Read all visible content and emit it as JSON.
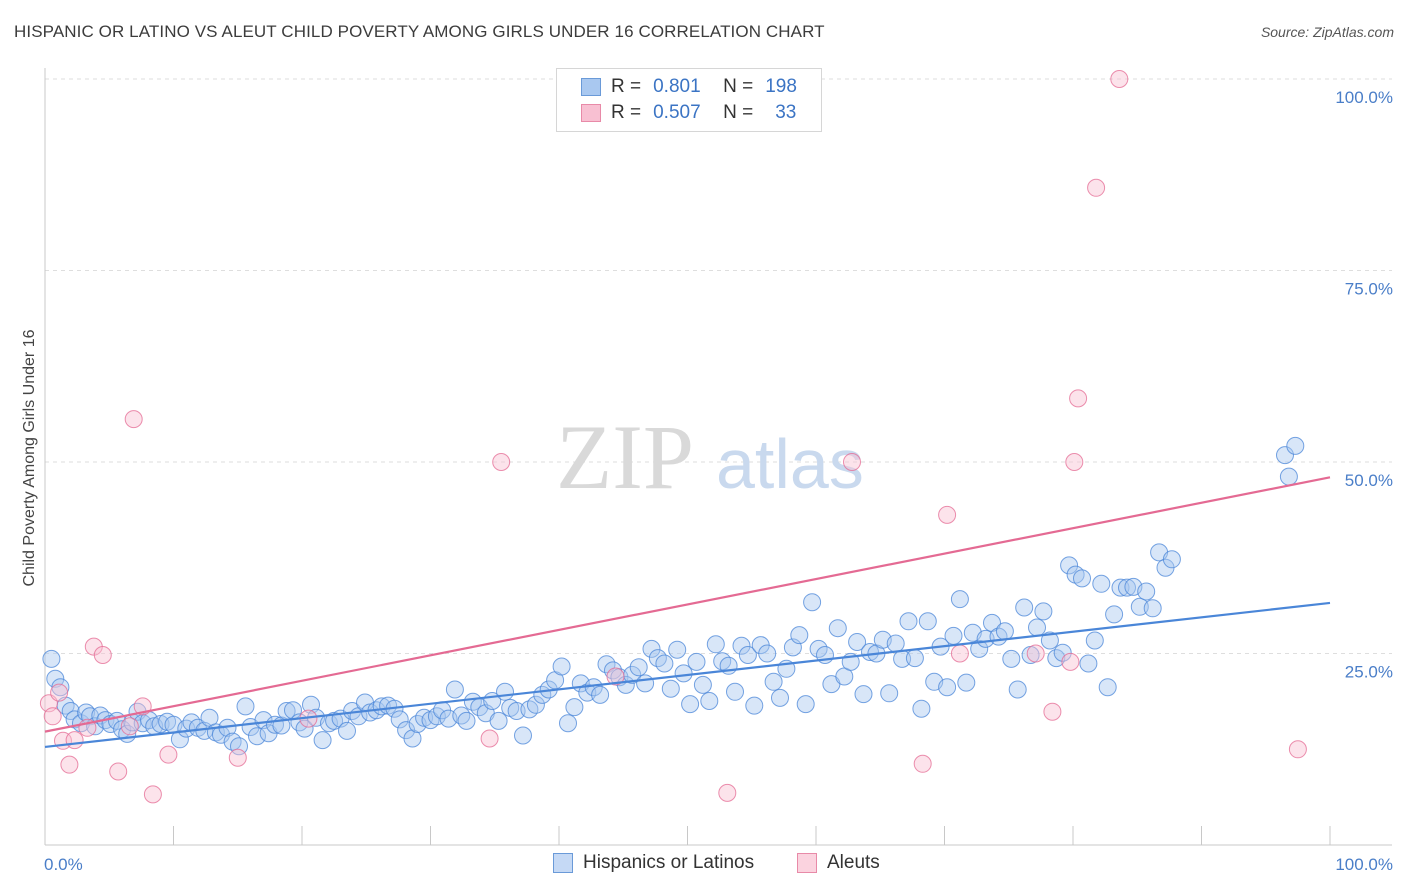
{
  "title": "HISPANIC OR LATINO VS ALEUT CHILD POVERTY AMONG GIRLS UNDER 16 CORRELATION CHART",
  "source": "Source: ZipAtlas.com",
  "watermark": {
    "zip": "ZIP",
    "atlas": "atlas"
  },
  "legend": {
    "rows": [
      {
        "r_label": "R =",
        "r_value": "0.801",
        "n_label": "N =",
        "n_value": "198",
        "color": "#a9c8f0",
        "border": "#6a9ad8"
      },
      {
        "r_label": "R =",
        "r_value": "0.507",
        "n_label": "N =",
        "n_value": "33",
        "color": "#f8c0d2",
        "border": "#e88aa8"
      }
    ]
  },
  "bottom_legend": {
    "items": [
      {
        "label": "Hispanics or Latinos",
        "color": "#c5d9f5",
        "border": "#6a9ad8"
      },
      {
        "label": "Aleuts",
        "color": "#fbd3df",
        "border": "#e88aa8"
      }
    ]
  },
  "chart_data": {
    "type": "scatter",
    "title": "HISPANIC OR LATINO VS ALEUT CHILD POVERTY AMONG GIRLS UNDER 16 CORRELATION CHART",
    "xlabel": "",
    "ylabel": "Child Poverty Among Girls Under 16",
    "xlim": [
      0,
      100
    ],
    "ylim": [
      0,
      100
    ],
    "x_tick_labels": [
      "0.0%",
      "100.0%"
    ],
    "y_tick_labels": [
      "25.0%",
      "50.0%",
      "75.0%",
      "100.0%"
    ],
    "y_ticks": [
      25,
      50,
      75,
      100
    ],
    "grid": true,
    "legend_position": "top-center",
    "series": [
      {
        "name": "Hispanics or Latinos",
        "color": "#4a86d8",
        "fill": "#a9c8f0",
        "trend": {
          "x": [
            0,
            100
          ],
          "y": [
            12.8,
            31.6
          ]
        },
        "points": [
          [
            0.5,
            24.3
          ],
          [
            0.8,
            21.7
          ],
          [
            1.2,
            20.6
          ],
          [
            1.6,
            18.2
          ],
          [
            2.0,
            17.5
          ],
          [
            2.3,
            16.4
          ],
          [
            2.8,
            15.9
          ],
          [
            3.2,
            17.3
          ],
          [
            3.5,
            16.8
          ],
          [
            3.9,
            15.5
          ],
          [
            4.3,
            16.9
          ],
          [
            4.7,
            16.3
          ],
          [
            5.1,
            15.8
          ],
          [
            5.6,
            16.2
          ],
          [
            6.0,
            15.1
          ],
          [
            6.4,
            14.5
          ],
          [
            6.8,
            16.0
          ],
          [
            7.2,
            17.4
          ],
          [
            7.6,
            15.9
          ],
          [
            8.1,
            16.3
          ],
          [
            8.5,
            15.5
          ],
          [
            9.0,
            15.8
          ],
          [
            9.5,
            16.1
          ],
          [
            10.0,
            15.7
          ],
          [
            10.5,
            13.8
          ],
          [
            11.0,
            15.2
          ],
          [
            11.4,
            16.0
          ],
          [
            11.9,
            15.3
          ],
          [
            12.4,
            14.9
          ],
          [
            12.8,
            16.6
          ],
          [
            13.3,
            14.7
          ],
          [
            13.7,
            14.4
          ],
          [
            14.2,
            15.3
          ],
          [
            14.6,
            13.5
          ],
          [
            15.1,
            12.9
          ],
          [
            15.6,
            18.1
          ],
          [
            16.0,
            15.4
          ],
          [
            16.5,
            14.2
          ],
          [
            17.0,
            16.3
          ],
          [
            17.4,
            14.6
          ],
          [
            17.9,
            15.7
          ],
          [
            18.4,
            15.6
          ],
          [
            18.8,
            17.5
          ],
          [
            19.3,
            17.6
          ],
          [
            19.8,
            16.0
          ],
          [
            20.2,
            15.2
          ],
          [
            20.7,
            18.3
          ],
          [
            21.1,
            16.6
          ],
          [
            21.6,
            13.7
          ],
          [
            22.1,
            15.9
          ],
          [
            22.5,
            16.2
          ],
          [
            23.0,
            16.5
          ],
          [
            23.5,
            14.9
          ],
          [
            23.9,
            17.5
          ],
          [
            24.4,
            16.8
          ],
          [
            24.9,
            18.6
          ],
          [
            25.3,
            17.3
          ],
          [
            25.8,
            17.6
          ],
          [
            26.2,
            18.1
          ],
          [
            26.7,
            18.2
          ],
          [
            27.2,
            17.8
          ],
          [
            27.6,
            16.4
          ],
          [
            28.1,
            15.0
          ],
          [
            28.6,
            13.9
          ],
          [
            29.0,
            15.8
          ],
          [
            29.5,
            16.6
          ],
          [
            30.0,
            16.3
          ],
          [
            30.5,
            16.8
          ],
          [
            30.9,
            17.6
          ],
          [
            31.4,
            16.5
          ],
          [
            31.9,
            20.3
          ],
          [
            32.4,
            16.9
          ],
          [
            32.8,
            16.2
          ],
          [
            33.3,
            18.7
          ],
          [
            33.8,
            18.0
          ],
          [
            34.3,
            17.2
          ],
          [
            34.8,
            18.8
          ],
          [
            35.3,
            16.2
          ],
          [
            35.8,
            20.0
          ],
          [
            36.2,
            17.9
          ],
          [
            36.7,
            17.5
          ],
          [
            37.2,
            14.3
          ],
          [
            37.7,
            17.7
          ],
          [
            38.2,
            18.3
          ],
          [
            38.7,
            19.6
          ],
          [
            39.2,
            20.3
          ],
          [
            39.7,
            21.5
          ],
          [
            40.2,
            23.3
          ],
          [
            40.7,
            15.9
          ],
          [
            41.2,
            18.0
          ],
          [
            41.7,
            21.1
          ],
          [
            42.2,
            19.9
          ],
          [
            42.7,
            20.6
          ],
          [
            43.2,
            19.6
          ],
          [
            43.7,
            23.6
          ],
          [
            44.2,
            22.8
          ],
          [
            44.7,
            21.9
          ],
          [
            45.2,
            20.9
          ],
          [
            45.7,
            22.2
          ],
          [
            46.2,
            23.2
          ],
          [
            46.7,
            21.1
          ],
          [
            47.2,
            25.6
          ],
          [
            47.7,
            24.4
          ],
          [
            48.2,
            23.7
          ],
          [
            48.7,
            20.4
          ],
          [
            49.2,
            25.5
          ],
          [
            49.7,
            22.4
          ],
          [
            50.2,
            18.4
          ],
          [
            50.7,
            23.9
          ],
          [
            51.2,
            20.9
          ],
          [
            51.7,
            18.8
          ],
          [
            52.2,
            26.2
          ],
          [
            52.7,
            24.0
          ],
          [
            53.2,
            23.4
          ],
          [
            53.7,
            20.0
          ],
          [
            54.2,
            26.0
          ],
          [
            54.7,
            24.8
          ],
          [
            55.2,
            18.2
          ],
          [
            55.7,
            26.1
          ],
          [
            56.2,
            25.0
          ],
          [
            56.7,
            21.3
          ],
          [
            57.2,
            19.2
          ],
          [
            57.7,
            23.0
          ],
          [
            58.2,
            25.8
          ],
          [
            58.7,
            27.4
          ],
          [
            59.2,
            18.4
          ],
          [
            59.7,
            31.7
          ],
          [
            60.2,
            25.6
          ],
          [
            60.7,
            24.8
          ],
          [
            61.2,
            21.0
          ],
          [
            61.7,
            28.3
          ],
          [
            62.2,
            22.0
          ],
          [
            62.7,
            23.9
          ],
          [
            63.2,
            26.5
          ],
          [
            63.7,
            19.7
          ],
          [
            64.2,
            25.2
          ],
          [
            64.7,
            25.0
          ],
          [
            65.2,
            26.8
          ],
          [
            65.7,
            19.8
          ],
          [
            66.2,
            26.3
          ],
          [
            66.7,
            24.3
          ],
          [
            67.2,
            29.2
          ],
          [
            67.7,
            24.4
          ],
          [
            68.2,
            17.8
          ],
          [
            68.7,
            29.2
          ],
          [
            69.2,
            21.3
          ],
          [
            69.7,
            25.9
          ],
          [
            70.2,
            20.6
          ],
          [
            70.7,
            27.3
          ],
          [
            71.2,
            32.1
          ],
          [
            71.7,
            21.2
          ],
          [
            72.2,
            27.7
          ],
          [
            72.7,
            25.6
          ],
          [
            73.2,
            26.9
          ],
          [
            73.7,
            29.0
          ],
          [
            74.2,
            27.2
          ],
          [
            74.7,
            27.9
          ],
          [
            75.2,
            24.3
          ],
          [
            75.7,
            20.3
          ],
          [
            76.2,
            31.0
          ],
          [
            76.7,
            24.8
          ],
          [
            77.2,
            28.4
          ],
          [
            77.7,
            30.5
          ],
          [
            78.2,
            26.7
          ],
          [
            78.7,
            24.4
          ],
          [
            79.2,
            25.1
          ],
          [
            79.7,
            36.5
          ],
          [
            80.2,
            35.3
          ],
          [
            80.7,
            34.8
          ],
          [
            81.2,
            23.7
          ],
          [
            81.7,
            26.7
          ],
          [
            82.2,
            34.1
          ],
          [
            82.7,
            20.6
          ],
          [
            83.2,
            30.1
          ],
          [
            83.7,
            33.6
          ],
          [
            84.2,
            33.6
          ],
          [
            84.7,
            33.7
          ],
          [
            85.2,
            31.1
          ],
          [
            85.7,
            33.1
          ],
          [
            86.2,
            30.9
          ],
          [
            86.7,
            38.2
          ],
          [
            87.2,
            36.2
          ],
          [
            87.7,
            37.3
          ],
          [
            96.5,
            50.9
          ],
          [
            97.3,
            52.1
          ],
          [
            96.8,
            48.1
          ]
        ]
      },
      {
        "name": "Aleuts",
        "color": "#e46a93",
        "fill": "#f8c0d2",
        "trend": {
          "x": [
            0,
            100
          ],
          "y": [
            14.8,
            48.0
          ]
        },
        "points": [
          [
            0.3,
            18.5
          ],
          [
            0.6,
            16.8
          ],
          [
            1.1,
            19.9
          ],
          [
            1.4,
            13.6
          ],
          [
            1.9,
            10.5
          ],
          [
            2.3,
            13.7
          ],
          [
            3.3,
            15.3
          ],
          [
            3.8,
            25.9
          ],
          [
            4.5,
            24.8
          ],
          [
            5.7,
            9.6
          ],
          [
            6.6,
            15.5
          ],
          [
            6.9,
            55.6
          ],
          [
            7.6,
            18.1
          ],
          [
            8.4,
            6.6
          ],
          [
            9.6,
            11.8
          ],
          [
            15.0,
            11.4
          ],
          [
            20.5,
            16.5
          ],
          [
            34.6,
            13.9
          ],
          [
            35.5,
            50.0
          ],
          [
            44.4,
            22.0
          ],
          [
            53.1,
            6.8
          ],
          [
            62.8,
            50.0
          ],
          [
            68.3,
            10.6
          ],
          [
            70.2,
            43.1
          ],
          [
            71.2,
            25.0
          ],
          [
            77.1,
            25.0
          ],
          [
            78.4,
            17.4
          ],
          [
            79.8,
            23.9
          ],
          [
            80.1,
            50.0
          ],
          [
            80.4,
            58.3
          ],
          [
            81.8,
            85.8
          ],
          [
            83.6,
            100.0
          ],
          [
            97.5,
            12.5
          ]
        ]
      }
    ]
  }
}
